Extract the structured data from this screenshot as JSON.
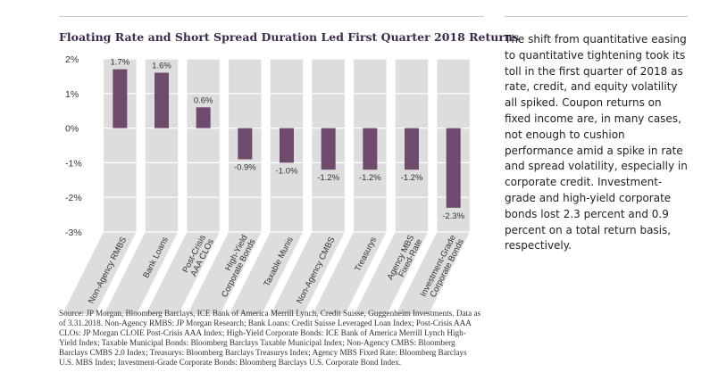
{
  "chart_data": {
    "type": "bar",
    "title": "Floating Rate and Short Spread Duration Led First Quarter 2018 Returns",
    "categories": [
      "Non-Agency RMBS",
      "Bank Loans",
      "Post-Crisis AAA CLOs",
      "High-Yield Corporate Bonds",
      "Taxable Munis",
      "Non-Agency CMBS",
      "Treasurys",
      "Agency MBS Fixed-Rate",
      "Investment-Grade Corporate Bonds"
    ],
    "category_lines": [
      [
        "Non-Agency RMBS"
      ],
      [
        "Bank Loans"
      ],
      [
        "Post-Crisis",
        "AAA CLOs"
      ],
      [
        "High-Yield",
        "Corporate Bonds"
      ],
      [
        "Taxable Munis"
      ],
      [
        "Non-Agency CMBS"
      ],
      [
        "Treasurys"
      ],
      [
        "Agency MBS",
        "Fixed-Rate"
      ],
      [
        "Investment-Grade",
        "Corporate Bonds"
      ]
    ],
    "values": [
      1.7,
      1.6,
      0.6,
      -0.9,
      -1.0,
      -1.2,
      -1.2,
      -1.2,
      -2.3
    ],
    "value_labels": [
      "1.7%",
      "1.6%",
      "0.6%",
      "-0.9%",
      "-1.0%",
      "-1.2%",
      "-1.2%",
      "-1.2%",
      "-2.3%"
    ],
    "yticks": [
      2,
      1,
      0,
      -1,
      -2,
      -3
    ],
    "ytick_labels": [
      "2%",
      "1%",
      "0%",
      "-1%",
      "-2%",
      "-3%"
    ],
    "ylim": [
      -3,
      2
    ],
    "xlabel": "",
    "ylabel": "",
    "grid": true,
    "colors": {
      "bar": "#6e4a6c",
      "column_bg": "#dddddd",
      "title": "#3c2a4f"
    }
  },
  "sidebar": {
    "text": "The shift from quantitative easing to quantitative tightening took its toll in the first quarter of 2018 as rate, credit, and equity volatility all spiked. Coupon returns on fixed income are, in many cases, not enough to cushion performance amid a spike in rate and spread volatility, especially in corporate credit. Investment-grade and high-yield corporate bonds lost 2.3 percent and 0.9 percent on a total return basis, respectively."
  },
  "source": {
    "text": "Source: JP Morgan, Bloomberg Barclays, ICE Bank of America Merrill Lynch, Credit Suisse, Guggenheim Investments. Data as of 3.31.2018. Non-Agency RMBS: JP Morgan Research; Bank Loans: Credit Suisse Leveraged Loan Index; Post-Crisis AAA CLOs: JP Morgan CLOIE Post-Crisis AAA Index; High-Yield Corporate Bonds: ICE Bank of America Merrill Lynch High-Yield Index; Taxable Municipal Bonds: Bloomberg Barclays Taxable Municipal Index; Non-Agency CMBS: Bloomberg Barclays CMBS 2.0 Index; Treasurys: Bloomberg Barclays Treasurys Index; Agency MBS Fixed Rate: Bloomberg Barclays U.S. MBS Index; Investment-Grade Corporate Bonds: Bloomberg Barclays U.S. Corporate Bond Index."
  }
}
